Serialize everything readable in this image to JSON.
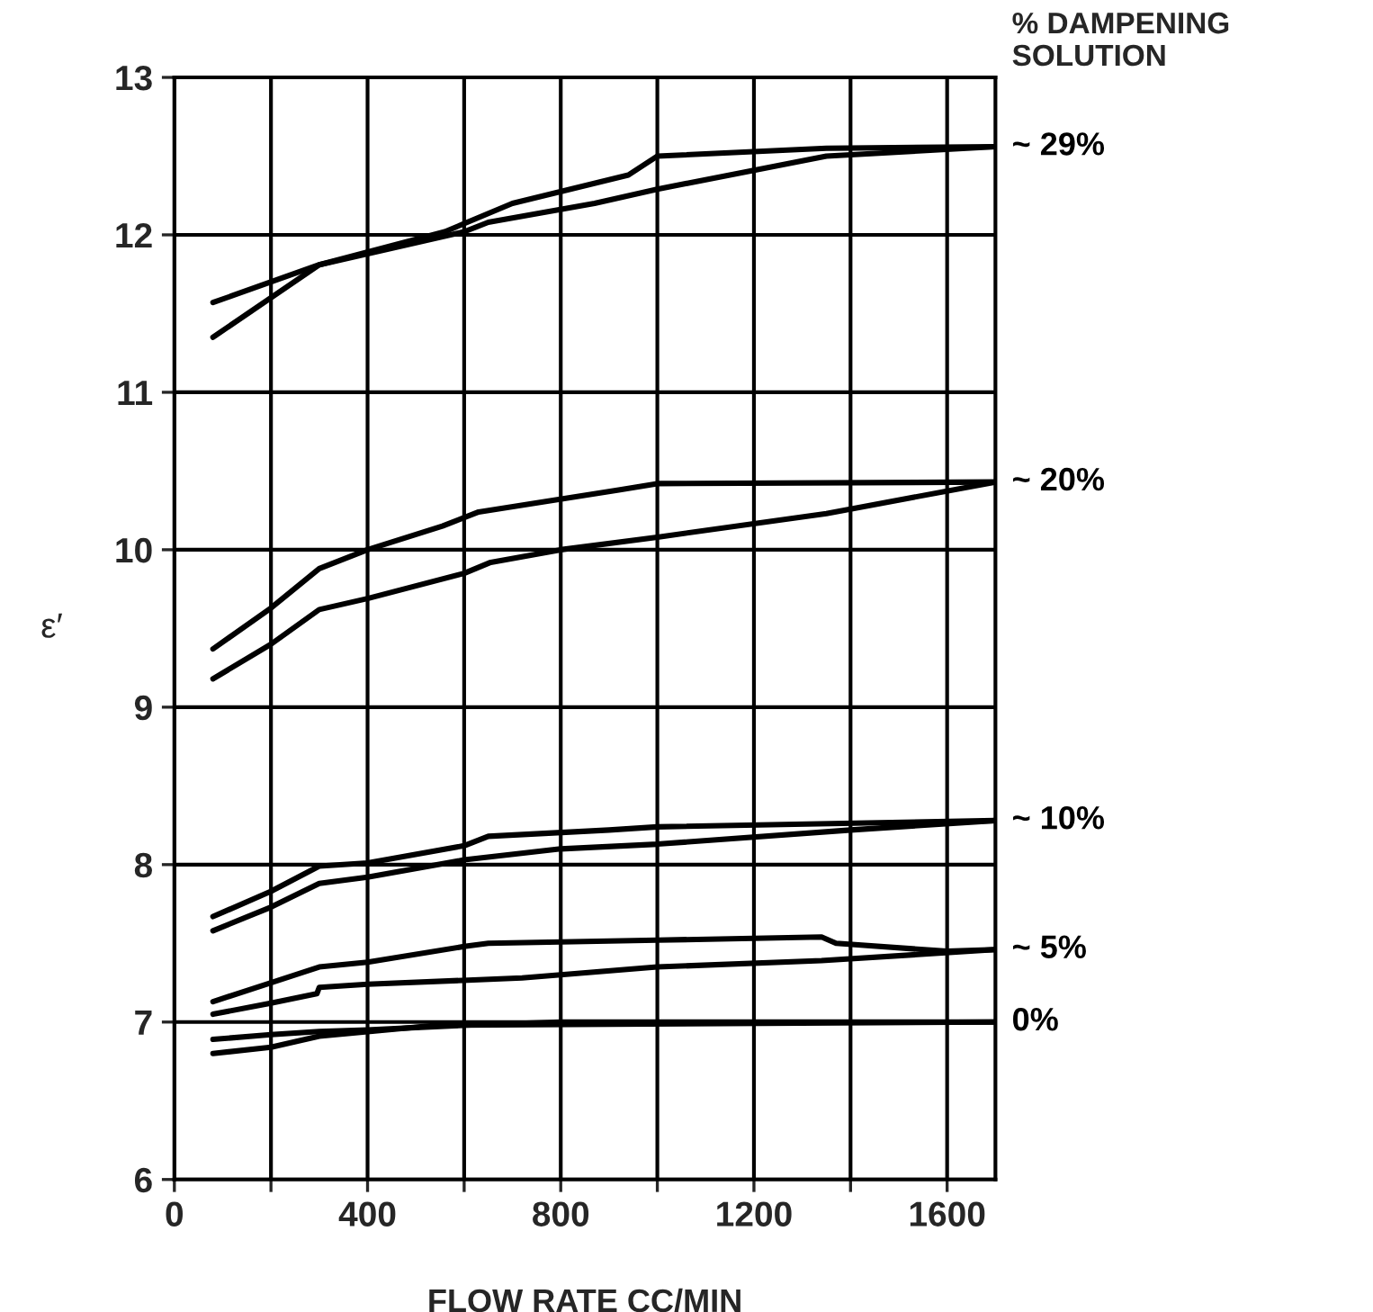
{
  "chart_data": {
    "type": "line",
    "xlabel": "FLOW RATE CC/MIN",
    "ylabel": "ε′",
    "legend_title": "% DAMPENING SOLUTION",
    "xlim": [
      0,
      1700
    ],
    "xticks": [
      0,
      {
        "value": 200,
        "label": null
      },
      400,
      {
        "value": 600,
        "label": null
      },
      800,
      {
        "value": 1000,
        "label": null
      },
      1200,
      {
        "value": 1400,
        "label": null
      },
      1600
    ],
    "ylim": [
      6,
      13
    ],
    "yticks": [
      6,
      7,
      8,
      9,
      10,
      11,
      12,
      13
    ],
    "grid": true,
    "legend": false,
    "marker": "none",
    "line_style": "solid",
    "series": [
      {
        "name": "~ 29%",
        "color": "#000000",
        "x": [
          80,
          300,
          560,
          700,
          940,
          1000,
          1350,
          1700
        ],
        "values": [
          11.35,
          11.81,
          12.02,
          12.2,
          12.38,
          12.5,
          12.55,
          12.56
        ]
      },
      {
        "color": "#000000",
        "x": [
          1700,
          1350,
          1000,
          870,
          650,
          600,
          400,
          300,
          80
        ],
        "values": [
          12.56,
          12.5,
          12.29,
          12.2,
          12.08,
          12.02,
          11.88,
          11.81,
          11.57
        ]
      },
      {
        "name": "~ 20%",
        "color": "#000000",
        "x": [
          80,
          200,
          300,
          400,
          555,
          630,
          920,
          1000,
          1700
        ],
        "values": [
          9.37,
          9.63,
          9.88,
          10.0,
          10.15,
          10.24,
          10.38,
          10.42,
          10.43
        ]
      },
      {
        "color": "#000000",
        "x": [
          1700,
          1350,
          1000,
          800,
          655,
          600,
          400,
          300,
          200,
          80
        ],
        "values": [
          10.43,
          10.23,
          10.08,
          10.0,
          9.92,
          9.85,
          9.69,
          9.62,
          9.4,
          9.18
        ]
      },
      {
        "name": "~ 10%",
        "color": "#000000",
        "x": [
          80,
          200,
          300,
          400,
          600,
          650,
          900,
          1000,
          1700
        ],
        "values": [
          7.67,
          7.83,
          7.99,
          8.01,
          8.12,
          8.18,
          8.22,
          8.24,
          8.28
        ]
      },
      {
        "color": "#000000",
        "x": [
          1700,
          1400,
          1000,
          800,
          600,
          400,
          300,
          200,
          80
        ],
        "values": [
          8.28,
          8.22,
          8.13,
          8.1,
          8.03,
          7.92,
          7.88,
          7.73,
          7.58
        ]
      },
      {
        "name": "~ 5%",
        "color": "#000000",
        "x": [
          80,
          200,
          300,
          400,
          600,
          650,
          1000,
          1340,
          1370,
          1600,
          1700
        ],
        "values": [
          7.13,
          7.25,
          7.35,
          7.38,
          7.48,
          7.5,
          7.52,
          7.54,
          7.5,
          7.45,
          7.46
        ]
      },
      {
        "color": "#000000",
        "x": [
          1700,
          1340,
          1000,
          720,
          400,
          300,
          295,
          200,
          80
        ],
        "values": [
          7.46,
          7.39,
          7.35,
          7.28,
          7.24,
          7.22,
          7.18,
          7.12,
          7.05
        ]
      },
      {
        "name": "0%",
        "color": "#000000",
        "x": [
          80,
          200,
          300,
          400,
          600,
          800,
          1700
        ],
        "values": [
          6.89,
          6.92,
          6.94,
          6.95,
          6.98,
          7.0,
          7.0
        ]
      },
      {
        "color": "#000000",
        "x": [
          80,
          200,
          300,
          545,
          1700
        ],
        "values": [
          6.8,
          6.84,
          6.91,
          6.98,
          7.0
        ]
      }
    ]
  }
}
